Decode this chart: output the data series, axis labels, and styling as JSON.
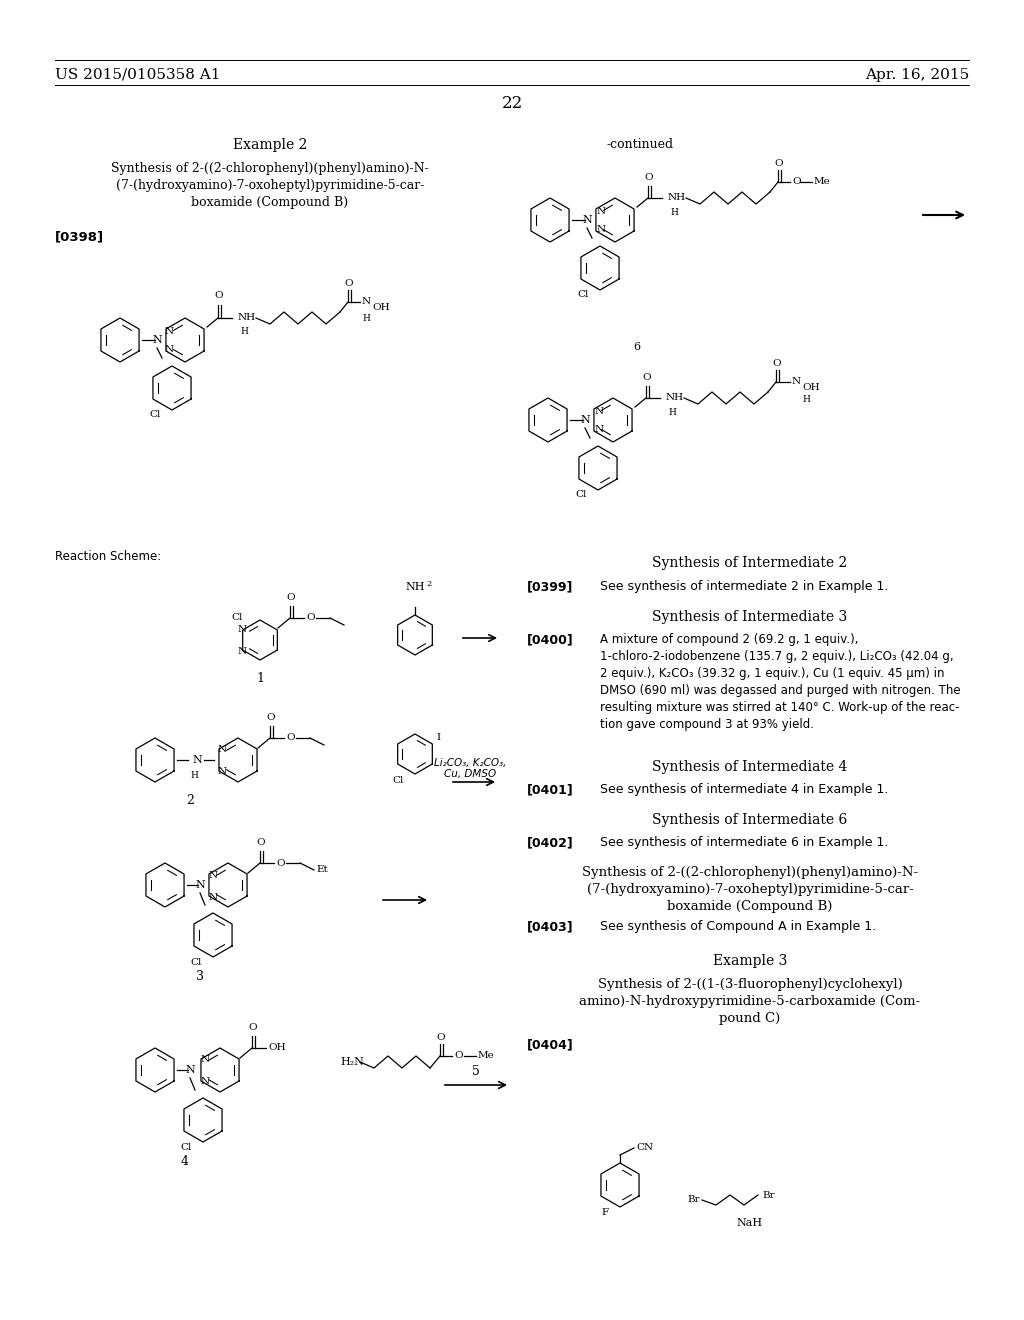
{
  "bg_color": "#ffffff",
  "font_color": "#000000",
  "header_left": "US 2015/0105358 A1",
  "header_right": "Apr. 16, 2015",
  "page_number": "22",
  "figsize": [
    10.24,
    13.2
  ],
  "dpi": 100
}
